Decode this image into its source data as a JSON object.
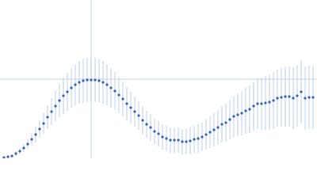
{
  "chart_data": {
    "type": "scatter",
    "xlim": [
      0,
      400
    ],
    "ylim": [
      0,
      200
    ],
    "xgrid": [
      115
    ],
    "ygrid": [
      100
    ],
    "grid_color": "#c9d3e2",
    "color": "#3563b8",
    "error_color": "#aec3e6",
    "x": [
      5,
      10,
      15,
      20,
      25,
      30,
      35,
      40,
      45,
      50,
      55,
      60,
      65,
      70,
      75,
      80,
      85,
      90,
      95,
      100,
      105,
      110,
      115,
      120,
      125,
      130,
      135,
      140,
      145,
      150,
      155,
      160,
      165,
      170,
      175,
      180,
      185,
      190,
      195,
      200,
      205,
      210,
      215,
      220,
      225,
      230,
      235,
      240,
      245,
      250,
      255,
      260,
      265,
      270,
      275,
      280,
      285,
      290,
      295,
      300,
      305,
      310,
      315,
      320,
      325,
      330,
      335,
      340,
      345,
      350,
      355,
      360,
      365,
      370,
      375,
      380,
      385,
      390,
      395
    ],
    "values": [
      1,
      2,
      3,
      6,
      9,
      13,
      18,
      24,
      30,
      37,
      44,
      52,
      59,
      66,
      73,
      79,
      84,
      89,
      93,
      96,
      98,
      99,
      99,
      99,
      98,
      96,
      93,
      89,
      85,
      80,
      75,
      69,
      64,
      59,
      54,
      48,
      43,
      39,
      34,
      31,
      27,
      25,
      23,
      23,
      23,
      21,
      21,
      22,
      24,
      25,
      27,
      30,
      33,
      36,
      39,
      43,
      45,
      49,
      53,
      55,
      57,
      60,
      62,
      66,
      69,
      69,
      70,
      71,
      73,
      76,
      77,
      78,
      78,
      76,
      79,
      84,
      76,
      77,
      77
    ],
    "errors": [
      1,
      1,
      2,
      3,
      4,
      5,
      6,
      8,
      10,
      11,
      13,
      15,
      17,
      19,
      21,
      23,
      24,
      25,
      26,
      27,
      28,
      28,
      28,
      28,
      27,
      27,
      26,
      25,
      24,
      23,
      22,
      21,
      20,
      19,
      18,
      18,
      17,
      17,
      16,
      16,
      16,
      16,
      16,
      16,
      16,
      16,
      16,
      17,
      17,
      18,
      18,
      19,
      20,
      21,
      22,
      23,
      24,
      25,
      26,
      27,
      28,
      29,
      30,
      31,
      32,
      33,
      34,
      35,
      36,
      36,
      37,
      38,
      38,
      39,
      39,
      40,
      40,
      40,
      40
    ]
  }
}
